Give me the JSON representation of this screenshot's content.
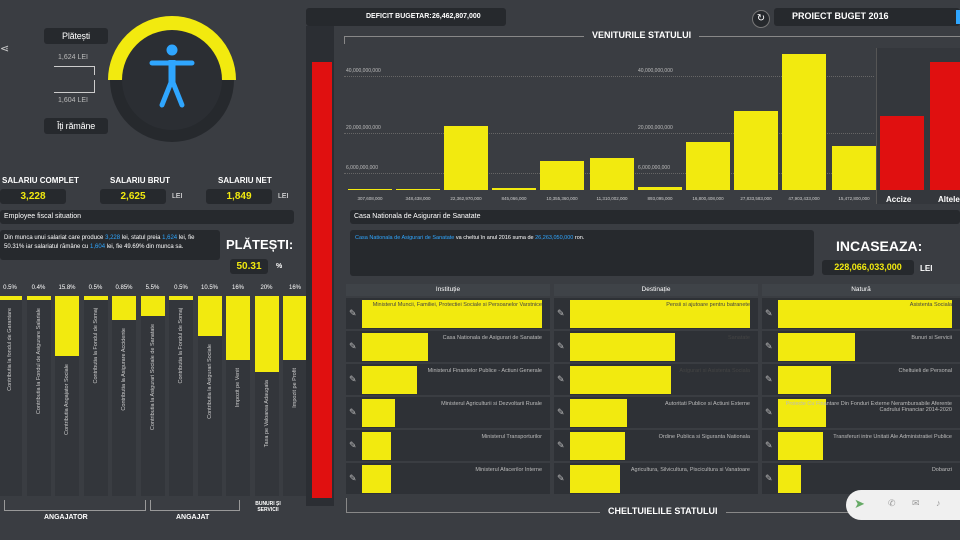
{
  "header": {
    "deficit_label": "DEFICIT BUGETAR:",
    "deficit_value": "26,462,807,000",
    "project_title": "PROIECT BUGET 2016"
  },
  "gauge": {
    "top_label": "Plătești",
    "top_value": "1,624 LEI",
    "bottom_value": "1,604 LEI",
    "bottom_label": "Îți rămâne",
    "fill_fraction": 0.5
  },
  "salary": {
    "complet_label": "SALARIU COMPLET",
    "complet_value": "3,228",
    "brut_label": "SALARIU BRUT",
    "brut_value": "2,625",
    "brut_unit": "LEI",
    "net_label": "SALARIU NET",
    "net_value": "1,849",
    "net_unit": "LEI"
  },
  "employee": {
    "title": "Employee fiscal situation",
    "text_a": "Din munca unui salariat care produce ",
    "amount_a": "3,228",
    "text_b": " lei, statul preia ",
    "amount_b": "1,624",
    "text_c": " lei, fie 50.31% iar salariatul rămâne cu ",
    "amount_c": "1,604",
    "text_d": " lei, fie 49.69% din munca sa.",
    "platesti_label": "PLĂTEȘTI:",
    "platesti_value": "50.31",
    "platesti_unit": "%"
  },
  "contributions": [
    {
      "pct": "0.5%",
      "label": "Contributia la fondul de Garantare",
      "fill": 0.02
    },
    {
      "pct": "0.4%",
      "label": "Contributia la Fondul de Asigurare Salariale",
      "fill": 0.02
    },
    {
      "pct": "15.8%",
      "label": "Contributia Angajator Sociale",
      "fill": 0.3
    },
    {
      "pct": "0.5%",
      "label": "Contributia la Fondul de Somaj",
      "fill": 0.02
    },
    {
      "pct": "0.85%",
      "label": "Contributia la Asigurare Accidente",
      "fill": 0.12
    },
    {
      "pct": "5.5%",
      "label": "Contributia la Asigurari Sociale de Sanatate",
      "fill": 0.1
    },
    {
      "pct": "0.5%",
      "label": "Contributia la Fondul de Somaj",
      "fill": 0.02
    },
    {
      "pct": "10.5%",
      "label": "Contributia la Asigurari Sociale",
      "fill": 0.2
    },
    {
      "pct": "16%",
      "label": "Impozit pe Venit",
      "fill": 0.32
    },
    {
      "pct": "20%",
      "label": "Taxa pe Valoarea Adaugata",
      "fill": 0.38
    },
    {
      "pct": "16%",
      "label": "Impozit pe Profit",
      "fill": 0.32
    }
  ],
  "groups": {
    "angajator": "ANGAJATOR",
    "angajat": "ANGAJAT",
    "bunuri": "BUNURI ȘI SERVICII"
  },
  "chart_data": {
    "type": "bar",
    "title": "VENITURILE STATULUI",
    "categories": [
      "307,608,000",
      "348,438,000",
      "22,362,970,000",
      "845,066,000",
      "10,355,360,000",
      "11,310,002,000",
      "893,095,000",
      "16,800,408,000",
      "27,833,583,000",
      "47,903,433,000",
      "15,472,800,000",
      "Accize",
      "Altele"
    ],
    "values": [
      307608000,
      348438000,
      22362970000,
      845066000,
      10355360000,
      11310002000,
      893095000,
      16800408000,
      27833583000,
      47903433000,
      15472800000,
      26000000000,
      45000000000
    ],
    "axis_labels": [
      "40,000,000,000",
      "20,000,000,000",
      "6,000,000,000"
    ],
    "right_axis_labels": [
      "40,000,000,000",
      "20,000,000,000",
      "6,000,000,000"
    ],
    "ylim": [
      0,
      50000000000
    ]
  },
  "revenue_labels": {
    "accize": "Accize",
    "altele": "Altele"
  },
  "selected": {
    "title": "Casa Nationala de Asigurari de Sanatate",
    "inst_link": "Casa Nationala de Asigurari de Sanatate",
    "text_a": " va cheltui în anul 2016 suma de ",
    "amount": "26,263,050,000",
    "text_b": " ron.",
    "incaseaza_label": "INCASEAZA:",
    "incaseaza_value": "228,066,033,000",
    "incaseaza_unit": "LEI"
  },
  "columns": {
    "institutie": "Instituție",
    "destinatie": "Destinație",
    "natura": "Natură"
  },
  "institutie": [
    {
      "label": "Ministerul Muncii, Familiei, Protectiei Sociale si Persoanelor Varstnice",
      "fill": 0.98
    },
    {
      "label": "Casa Nationala de Asigurari de Sanatate",
      "fill": 0.36
    },
    {
      "label": "Ministerul Finantelor Publice - Actiuni Generale",
      "fill": 0.3
    },
    {
      "label": "Ministerul Agriculturii si Dezvoltarii Rurale",
      "fill": 0.18
    },
    {
      "label": "Ministerul Transporturilor",
      "fill": 0.16
    },
    {
      "label": "Ministerul Afacerilor Interne",
      "fill": 0.16
    }
  ],
  "destinatie": [
    {
      "label": "Pensii si ajutoare pentru batranete",
      "fill": 0.98
    },
    {
      "label": "Sanatate",
      "fill": 0.57
    },
    {
      "label": "Asigurari si Asistenta Sociala",
      "fill": 0.55
    },
    {
      "label": "Autoritati Publice si Actiuni Externe",
      "fill": 0.31
    },
    {
      "label": "Ordine Publica si Siguranta Nationala",
      "fill": 0.3
    },
    {
      "label": "Agricultura, Silvicultura, Piscicultura si Vanatoare",
      "fill": 0.27
    }
  ],
  "natura": [
    {
      "label": "Asistenta Sociala",
      "fill": 0.98
    },
    {
      "label": "Bunuri si Servicii",
      "fill": 0.43
    },
    {
      "label": "Cheltuieli de Personal",
      "fill": 0.3
    },
    {
      "label": "Proiecte Cu Finantare Din Fonduri Externe Nerambursabile Aferente Cadrului Financiar 2014-2020",
      "fill": 0.27
    },
    {
      "label": "Transferuri intre Unitati Ale Administratiei Publice",
      "fill": 0.25
    },
    {
      "label": "Dobanzi",
      "fill": 0.13
    }
  ],
  "footer": {
    "title": "CHELTUIELILE STATULUI"
  }
}
